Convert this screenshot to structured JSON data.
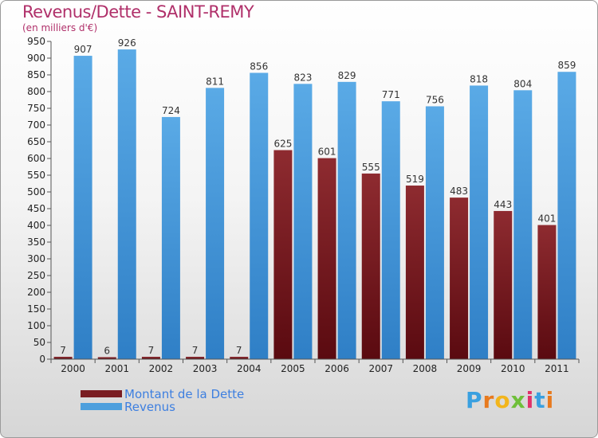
{
  "title": "Revenus/Dette - SAINT-REMY",
  "subtitle": "(en milliers d'€)",
  "colors": {
    "dette": "#7a1d22",
    "revenus": "#4d9fdd",
    "title": "#b0306a",
    "legend_text": "#3d7fe0"
  },
  "chart_data": {
    "type": "bar",
    "title": "Revenus/Dette - SAINT-REMY",
    "ylabel": "(en milliers d'€)",
    "xlabel": "",
    "ylim": [
      0,
      950
    ],
    "ytick_step": 50,
    "grid": false,
    "categories": [
      "2000",
      "2001",
      "2002",
      "2003",
      "2004",
      "2005",
      "2006",
      "2007",
      "2008",
      "2009",
      "2010",
      "2011"
    ],
    "series": [
      {
        "name": "Montant de la Dette",
        "color": "#7a1d22",
        "values": [
          7,
          6,
          7,
          7,
          7,
          625,
          601,
          555,
          519,
          483,
          443,
          401
        ]
      },
      {
        "name": "Revenus",
        "color": "#4d9fdd",
        "values": [
          907,
          926,
          724,
          811,
          856,
          823,
          829,
          771,
          756,
          818,
          804,
          859
        ]
      }
    ],
    "legend": "bottom-left"
  },
  "legend": {
    "items": [
      {
        "label": "Montant de la Dette",
        "color": "#7a1d22"
      },
      {
        "label": "Revenus",
        "color": "#4d9fdd"
      }
    ]
  },
  "logo": {
    "text": "Proxiti",
    "letter_colors": [
      "#3aa0e0",
      "#e87a1e",
      "#f2b51c",
      "#6fbf3a",
      "#e0326a",
      "#3aa0e0",
      "#e87a1e"
    ]
  }
}
